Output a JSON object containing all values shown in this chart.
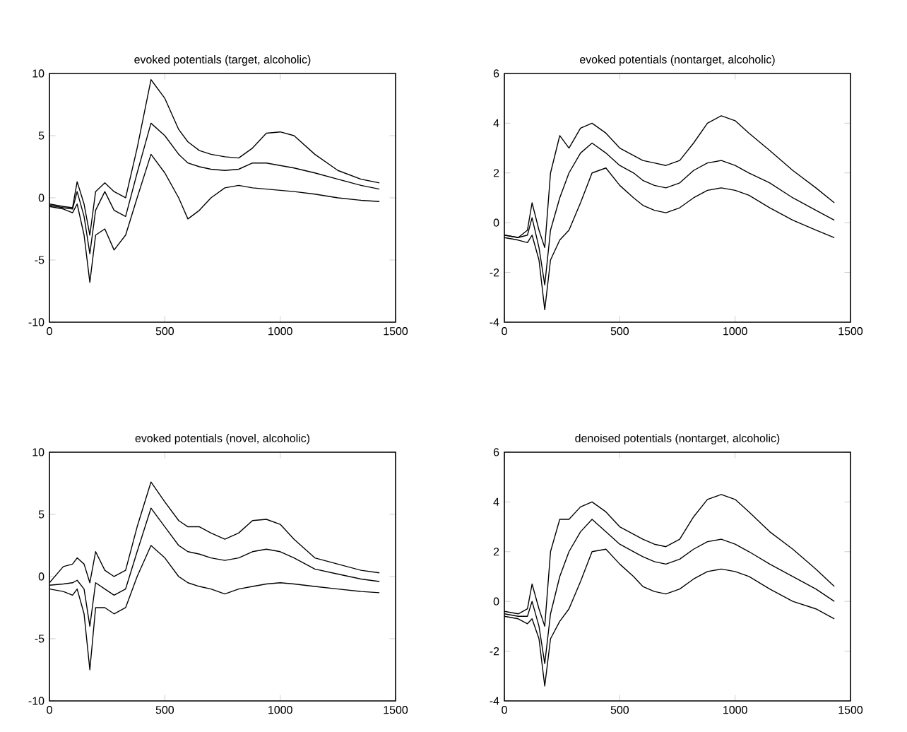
{
  "chart_data": [
    {
      "type": "line",
      "title": "evoked potentials (target, alcoholic)",
      "x": [
        0,
        60,
        100,
        120,
        150,
        175,
        200,
        240,
        280,
        330,
        380,
        440,
        500,
        560,
        600,
        650,
        700,
        760,
        820,
        880,
        940,
        1000,
        1060,
        1150,
        1250,
        1350,
        1430
      ],
      "xlim": [
        0,
        1500
      ],
      "xticks": [
        0,
        500,
        1000,
        1500
      ],
      "ylim": [
        -10,
        10
      ],
      "yticks": [
        -10,
        -5,
        0,
        5,
        10
      ],
      "series": [
        {
          "color": "#000000",
          "values": [
            -0.5,
            -0.7,
            -0.8,
            1.3,
            -0.5,
            -3,
            0.5,
            1.2,
            0.5,
            0,
            4,
            9.5,
            8,
            5.5,
            4.5,
            3.8,
            3.5,
            3.3,
            3.2,
            4,
            5.2,
            5.3,
            5,
            3.5,
            2.2,
            1.5,
            1.2
          ]
        },
        {
          "color": "#000000",
          "values": [
            -0.6,
            -0.8,
            -0.9,
            0.5,
            -1.5,
            -4.5,
            -1,
            0.5,
            -1,
            -1.5,
            2,
            6,
            5,
            3.5,
            2.8,
            2.5,
            2.3,
            2.2,
            2.3,
            2.8,
            2.8,
            2.6,
            2.4,
            2,
            1.5,
            1,
            0.7
          ]
        },
        {
          "color": "#000000",
          "values": [
            -0.7,
            -0.9,
            -1.2,
            -0.5,
            -3,
            -6.8,
            -3,
            -2.5,
            -4.2,
            -3,
            0,
            3.5,
            2,
            0,
            -1.7,
            -1,
            0,
            0.8,
            1,
            0.8,
            0.7,
            0.6,
            0.5,
            0.3,
            0,
            -0.2,
            -0.3
          ]
        }
      ]
    },
    {
      "type": "line",
      "title": "evoked potentials (nontarget, alcoholic)",
      "x": [
        0,
        60,
        100,
        120,
        150,
        175,
        200,
        240,
        280,
        330,
        380,
        440,
        500,
        560,
        600,
        650,
        700,
        760,
        820,
        880,
        940,
        1000,
        1060,
        1150,
        1250,
        1350,
        1430
      ],
      "xlim": [
        0,
        1500
      ],
      "xticks": [
        0,
        500,
        1000,
        1500
      ],
      "ylim": [
        -4,
        6
      ],
      "yticks": [
        -4,
        -2,
        0,
        2,
        4,
        6
      ],
      "series": [
        {
          "color": "#000000",
          "values": [
            -0.5,
            -0.6,
            -0.3,
            0.8,
            -0.3,
            -1,
            2,
            3.5,
            3,
            3.8,
            4,
            3.6,
            3,
            2.7,
            2.5,
            2.4,
            2.3,
            2.5,
            3.2,
            4,
            4.3,
            4.1,
            3.6,
            2.9,
            2.1,
            1.4,
            0.8
          ]
        },
        {
          "color": "#000000",
          "values": [
            -0.5,
            -0.6,
            -0.5,
            0.2,
            -1,
            -2.5,
            -0.3,
            1,
            2,
            2.8,
            3.2,
            2.8,
            2.3,
            2,
            1.7,
            1.5,
            1.4,
            1.6,
            2.1,
            2.4,
            2.5,
            2.3,
            2,
            1.6,
            1,
            0.5,
            0.1
          ]
        },
        {
          "color": "#000000",
          "values": [
            -0.6,
            -0.7,
            -0.8,
            -0.5,
            -1.5,
            -3.5,
            -1.5,
            -0.7,
            -0.3,
            0.8,
            2,
            2.2,
            1.5,
            1,
            0.7,
            0.5,
            0.4,
            0.6,
            1,
            1.3,
            1.4,
            1.3,
            1.1,
            0.6,
            0.1,
            -0.3,
            -0.6
          ]
        }
      ]
    },
    {
      "type": "line",
      "title": "evoked potentials (novel, alcoholic)",
      "x": [
        0,
        60,
        100,
        120,
        150,
        175,
        200,
        240,
        280,
        330,
        380,
        440,
        500,
        560,
        600,
        650,
        700,
        760,
        820,
        880,
        940,
        1000,
        1060,
        1150,
        1250,
        1350,
        1430
      ],
      "xlim": [
        0,
        1500
      ],
      "xticks": [
        0,
        500,
        1000,
        1500
      ],
      "ylim": [
        -10,
        10
      ],
      "yticks": [
        -10,
        -5,
        0,
        5,
        10
      ],
      "series": [
        {
          "color": "#000000",
          "values": [
            -0.5,
            0.8,
            1,
            1.5,
            1,
            -0.5,
            2,
            0.5,
            0,
            0.5,
            4,
            7.6,
            6,
            4.5,
            4,
            4,
            3.5,
            3,
            3.5,
            4.5,
            4.6,
            4.2,
            3,
            1.5,
            1,
            0.5,
            0.3
          ]
        },
        {
          "color": "#000000",
          "values": [
            -0.7,
            -0.6,
            -0.5,
            -0.3,
            -1,
            -4,
            -0.5,
            -1,
            -1.5,
            -1,
            2,
            5.5,
            4,
            2.5,
            2,
            1.8,
            1.5,
            1.3,
            1.5,
            2,
            2.2,
            2,
            1.5,
            0.6,
            0.2,
            -0.2,
            -0.4
          ]
        },
        {
          "color": "#000000",
          "values": [
            -1,
            -1.2,
            -1.5,
            -1,
            -3,
            -7.5,
            -2.5,
            -2.5,
            -3,
            -2.5,
            0,
            2.5,
            1.5,
            0,
            -0.5,
            -0.8,
            -1,
            -1.4,
            -1,
            -0.8,
            -0.6,
            -0.5,
            -0.6,
            -0.8,
            -1,
            -1.2,
            -1.3
          ]
        }
      ]
    },
    {
      "type": "line",
      "title": "denoised potentials (nontarget, alcoholic)",
      "x": [
        0,
        60,
        100,
        120,
        150,
        175,
        200,
        240,
        280,
        330,
        380,
        440,
        500,
        560,
        600,
        650,
        700,
        760,
        820,
        880,
        940,
        1000,
        1060,
        1150,
        1250,
        1350,
        1430
      ],
      "xlim": [
        0,
        1500
      ],
      "xticks": [
        0,
        500,
        1000,
        1500
      ],
      "ylim": [
        -4,
        6
      ],
      "yticks": [
        -4,
        -2,
        0,
        2,
        4,
        6
      ],
      "series": [
        {
          "color": "#000000",
          "values": [
            -0.4,
            -0.5,
            -0.3,
            0.7,
            -0.3,
            -1,
            2,
            3.3,
            3.3,
            3.8,
            4,
            3.6,
            3,
            2.7,
            2.5,
            2.3,
            2.2,
            2.5,
            3.4,
            4.1,
            4.3,
            4.1,
            3.6,
            2.8,
            2.1,
            1.3,
            0.6
          ]
        },
        {
          "color": "#000000",
          "values": [
            -0.5,
            -0.6,
            -0.6,
            0,
            -1,
            -2.5,
            -0.5,
            1,
            2,
            2.8,
            3.3,
            2.8,
            2.3,
            2,
            1.8,
            1.6,
            1.5,
            1.7,
            2.1,
            2.4,
            2.5,
            2.3,
            2,
            1.5,
            1,
            0.5,
            0
          ]
        },
        {
          "color": "#000000",
          "values": [
            -0.6,
            -0.7,
            -0.9,
            -0.7,
            -1.5,
            -3.4,
            -1.5,
            -0.8,
            -0.3,
            0.8,
            2,
            2.1,
            1.5,
            1,
            0.6,
            0.4,
            0.3,
            0.5,
            0.9,
            1.2,
            1.3,
            1.2,
            1,
            0.5,
            0,
            -0.3,
            -0.7
          ]
        }
      ]
    }
  ]
}
